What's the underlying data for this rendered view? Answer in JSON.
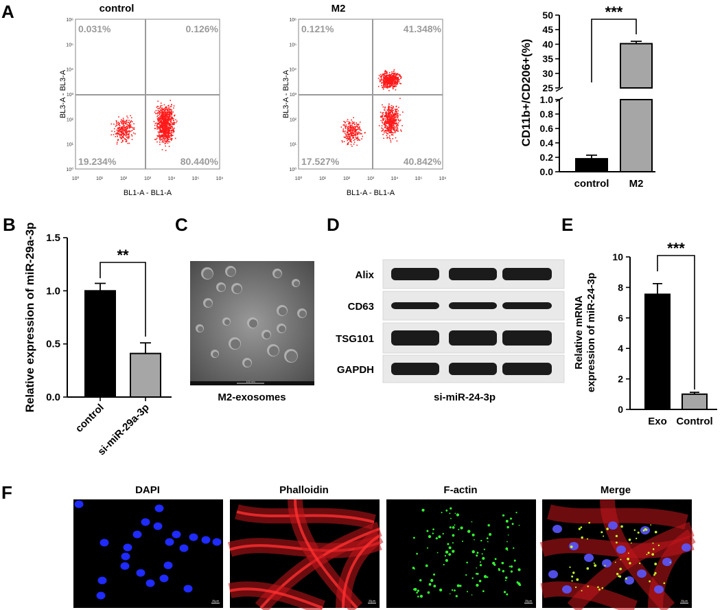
{
  "panels": {
    "A": {
      "letter": "A",
      "flow_plots": [
        {
          "title": "control",
          "xlabel": "BL1-A - BL1-A",
          "ylabel": "BL3-A - BL3-A",
          "quadrants": {
            "ul": "0.031%",
            "ur": "0.126%",
            "ll": "19.234%",
            "lr": "80.440%"
          }
        },
        {
          "title": "M2",
          "xlabel": "BL1-A - BL1-A",
          "ylabel": "BL3-A - BL3-A",
          "quadrants": {
            "ul": "0.121%",
            "ur": "41.348%",
            "ll": "17.527%",
            "lr": "40.842%"
          }
        }
      ],
      "flow_ticks": [
        "10⁰",
        "10¹",
        "10²",
        "10³",
        "10⁴",
        "10⁵",
        "10⁶"
      ]
    },
    "B": {
      "letter": "B"
    },
    "C": {
      "letter": "C",
      "caption": "M2-exosomes",
      "scale_label": "100 nm"
    },
    "D": {
      "letter": "D",
      "rows": [
        "Alix",
        "CD63",
        "TSG101",
        "GAPDH"
      ],
      "caption": "si-miR-24-3p"
    },
    "E": {
      "letter": "E"
    },
    "F": {
      "letter": "F",
      "images": [
        {
          "title": "DAPI",
          "scale": "20μm"
        },
        {
          "title": "Phalloidin",
          "scale": "20μm"
        },
        {
          "title": "F-actin",
          "scale": "20μm"
        },
        {
          "title": "Merge",
          "scale": "20μm"
        }
      ]
    }
  },
  "chart_data": [
    {
      "panel": "A",
      "type": "bar",
      "categories": [
        "control",
        "M2"
      ],
      "values": [
        0.18,
        40.2
      ],
      "errors": [
        0.05,
        0.8
      ],
      "ylabel": "CD11b+/CD206+(%)",
      "broken_axis": {
        "lower_range": [
          0,
          1.0
        ],
        "upper_range": [
          25,
          50
        ]
      },
      "lower_ticks": [
        "0.0",
        "0.2",
        "0.4",
        "0.6",
        "0.8",
        "1.0"
      ],
      "upper_ticks": [
        "25",
        "30",
        "35",
        "40",
        "45",
        "50"
      ],
      "significance": "***",
      "colors": [
        "#000000",
        "#a6a6a6"
      ]
    },
    {
      "panel": "B",
      "type": "bar",
      "categories": [
        "control",
        "si-miR-29a-3p"
      ],
      "values": [
        1.0,
        0.41
      ],
      "errors": [
        0.07,
        0.1
      ],
      "ylabel": "Relative  expression of miR-29a-3p",
      "ylim": [
        0,
        1.5
      ],
      "yticks": [
        "0.0",
        "0.5",
        "1.0",
        "1.5"
      ],
      "significance": "**",
      "colors": [
        "#000000",
        "#a6a6a6"
      ]
    },
    {
      "panel": "E",
      "type": "bar",
      "categories": [
        "Exo",
        "Control"
      ],
      "values": [
        7.55,
        1.0
      ],
      "errors": [
        0.7,
        0.12
      ],
      "ylabel": [
        "Relative  mRNA",
        "expression of miR-24-3p"
      ],
      "ylim": [
        0,
        10
      ],
      "yticks": [
        "0",
        "2",
        "4",
        "6",
        "8",
        "10"
      ],
      "significance": "***",
      "colors": [
        "#000000",
        "#a6a6a6"
      ]
    }
  ]
}
